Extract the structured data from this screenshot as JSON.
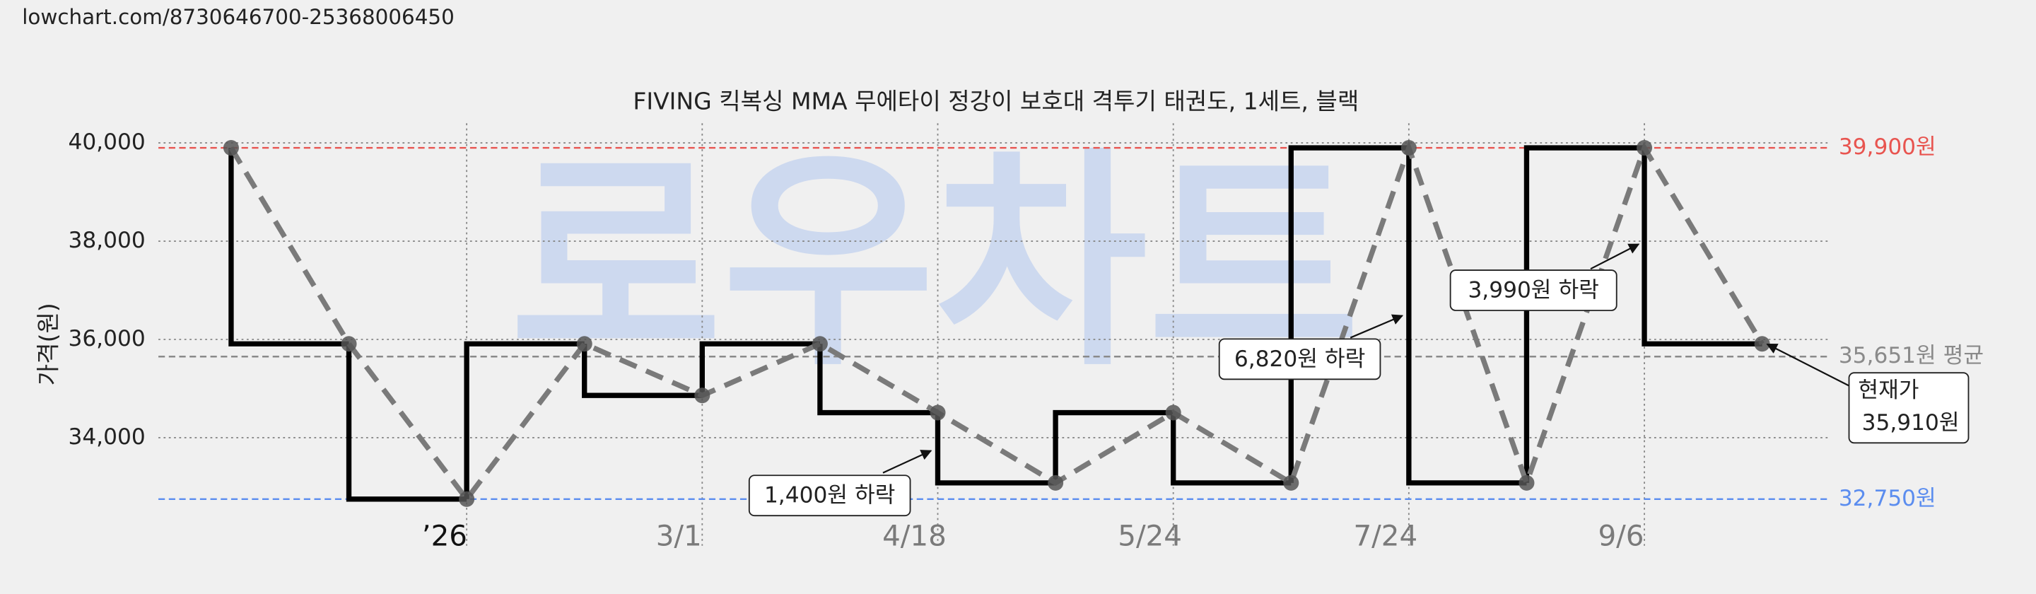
{
  "url": "lowchart.com/8730646700-25368006450",
  "chart_data": {
    "type": "step-line",
    "title": "FIVING 킥복싱 MMA 무에타이 정강이 보호대 격투기 태권도, 1세트, 블랙",
    "watermark": "로우차트",
    "ylabel": "가격(원)",
    "categories": [
      null,
      null,
      "’26",
      null,
      "3/1",
      null,
      "4/18",
      null,
      "5/24",
      null,
      "7/24",
      null,
      "9/6",
      null
    ],
    "values": [
      39900,
      35910,
      32750,
      35910,
      34860,
      35910,
      34510,
      33080,
      34510,
      33080,
      39900,
      33080,
      39900,
      35910
    ],
    "color": "#000000",
    "line_color": "#7a7a7a",
    "marker_color": "#555555",
    "ylim": [
      31800,
      40400
    ],
    "yticks": [
      {
        "value": 34000,
        "label": "34,000"
      },
      {
        "value": 36000,
        "label": "36,000"
      },
      {
        "value": 38000,
        "label": "38,000"
      },
      {
        "value": 40000,
        "label": "40,000"
      }
    ],
    "grid": true,
    "reference_lines": [
      {
        "value": 39900,
        "label": "39,900원",
        "color": "#e8544f"
      },
      {
        "value": 35651,
        "label": "35,651원 평균",
        "color": "#8a8a8a"
      },
      {
        "value": 32750,
        "label": "32,750원",
        "color": "#5b8def"
      }
    ],
    "annotations": [
      "1,400원 하락",
      "6,820원 하락",
      "3,990원 하락",
      "현재가",
      "35,910원"
    ]
  }
}
